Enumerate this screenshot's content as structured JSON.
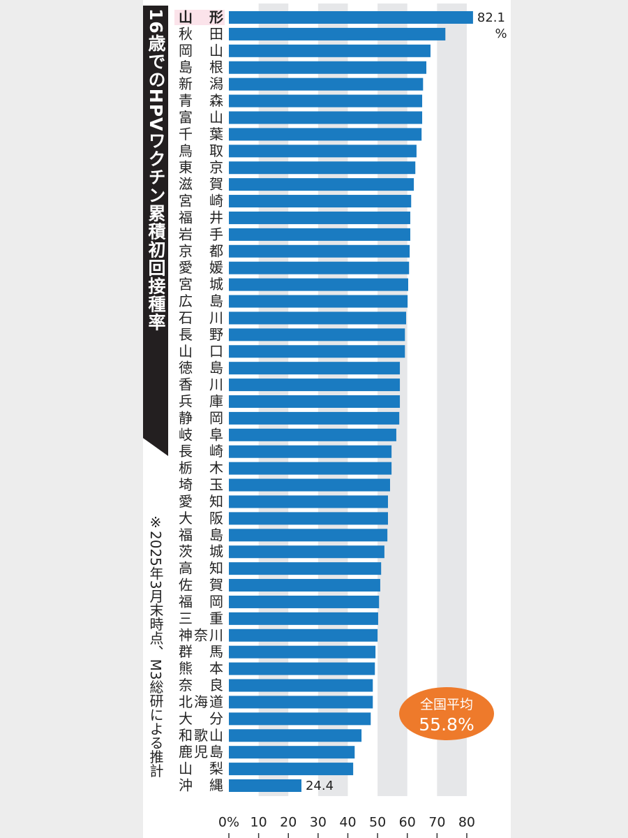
{
  "chart_data": {
    "type": "barh",
    "title": "16歳でのHPVワクチン累積初回接種率",
    "note": "※2025年3月末時点、M3総研による推計",
    "unit": "%",
    "annotation": [
      "全国平均",
      "55.8%"
    ],
    "categories": [
      "山形",
      "秋田",
      "岡山",
      "島根",
      "新潟",
      "青森",
      "富山",
      "千葉",
      "鳥取",
      "東京",
      "滋賀",
      "宮崎",
      "福井",
      "岩手",
      "京都",
      "愛媛",
      "宮城",
      "広島",
      "石川",
      "長野",
      "山口",
      "徳島",
      "香川",
      "兵庫",
      "静岡",
      "岐阜",
      "長崎",
      "栃木",
      "埼玉",
      "愛知",
      "大阪",
      "福島",
      "茨城",
      "高知",
      "佐賀",
      "福岡",
      "三重",
      "神奈川",
      "群馬",
      "熊本",
      "奈良",
      "北海道",
      "大分",
      "和歌山",
      "鹿児島",
      "山梨",
      "沖縄"
    ],
    "values": [
      82.1,
      72.8,
      67.8,
      66.4,
      65.3,
      65.0,
      65.0,
      64.8,
      63.1,
      62.7,
      62.2,
      61.3,
      61.0,
      61.0,
      60.8,
      60.6,
      60.3,
      60.1,
      59.6,
      59.2,
      59.2,
      57.5,
      57.5,
      57.5,
      57.3,
      56.3,
      54.7,
      54.7,
      54.2,
      53.5,
      53.5,
      53.3,
      52.3,
      51.2,
      50.9,
      50.5,
      50.2,
      50.0,
      49.3,
      49.1,
      48.4,
      48.4,
      47.7,
      44.6,
      42.3,
      41.8,
      24.4
    ],
    "labeled_points": [
      0,
      46
    ],
    "color": "#1a7bc1",
    "xlim": [
      0,
      84
    ],
    "xticks": [
      {
        "value": 0,
        "label": "0%"
      },
      10,
      20,
      30,
      40,
      50,
      60,
      70,
      80
    ],
    "banded_grid": true
  }
}
